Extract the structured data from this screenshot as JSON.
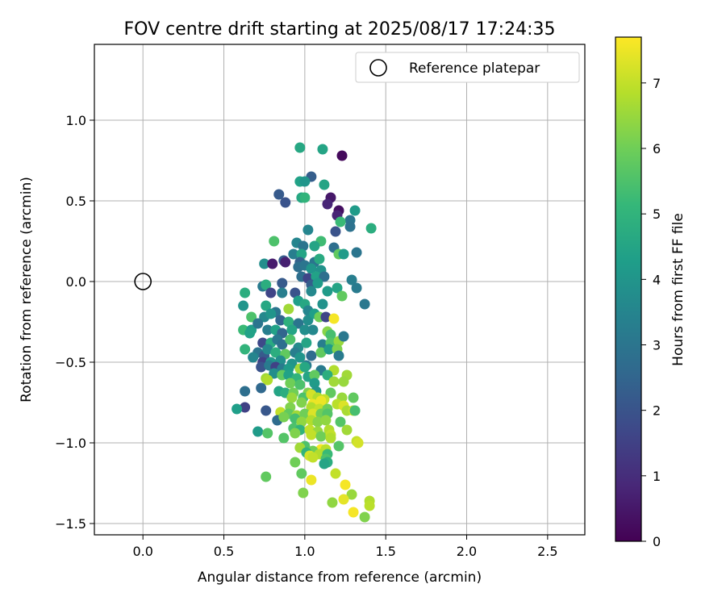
{
  "chart_data": {
    "type": "scatter",
    "title": "FOV centre drift starting at 2025/08/17 17:24:35",
    "xlabel": "Angular distance from reference (arcmin)",
    "ylabel": "Rotation from reference (arcmin)",
    "xlim": [
      -0.3,
      2.73
    ],
    "ylim": [
      -1.57,
      1.47
    ],
    "xticks": [
      "0.0",
      "0.5",
      "1.0",
      "1.5",
      "2.0",
      "2.5"
    ],
    "xtick_values": [
      0,
      0.5,
      1.0,
      1.5,
      2.0,
      2.5
    ],
    "yticks": [
      "1.0",
      "0.5",
      "0.0",
      "−0.5",
      "−1.0",
      "−1.5"
    ],
    "ytick_values": [
      1.0,
      0.5,
      0,
      -0.5,
      -1.0,
      -1.5
    ],
    "grid": true,
    "legend": {
      "placement": "upper-right",
      "label": "Reference platepar"
    },
    "reference_point": {
      "x": 0,
      "y": 0
    },
    "colorbar": {
      "label": "Hours from first FF file",
      "range": [
        0,
        7.7
      ],
      "ticks": [
        "0",
        "1",
        "2",
        "3",
        "4",
        "5",
        "6",
        "7"
      ],
      "tick_values": [
        0,
        1,
        2,
        3,
        4,
        5,
        6,
        7
      ],
      "colormap": [
        "#440154",
        "#482878",
        "#3e4989",
        "#31688e",
        "#26828e",
        "#1f9e89",
        "#35b779",
        "#6ece58",
        "#b5de2b",
        "#fde725"
      ]
    },
    "points": [
      [
        1.23,
        0.78,
        0.2
      ],
      [
        0.97,
        0.83,
        4.6
      ],
      [
        1.11,
        0.82,
        4.5
      ],
      [
        1.04,
        0.65,
        2.3
      ],
      [
        0.97,
        0.62,
        4.4
      ],
      [
        1.0,
        0.62,
        4.0
      ],
      [
        1.12,
        0.6,
        4.5
      ],
      [
        0.84,
        0.54,
        2.2
      ],
      [
        0.98,
        0.52,
        4.6
      ],
      [
        1.0,
        0.52,
        5.0
      ],
      [
        1.16,
        0.52,
        0.5
      ],
      [
        0.88,
        0.49,
        2.0
      ],
      [
        1.14,
        0.48,
        0.8
      ],
      [
        1.21,
        0.44,
        0.3
      ],
      [
        1.31,
        0.44,
        4.2
      ],
      [
        1.2,
        0.41,
        0.8
      ],
      [
        1.28,
        0.38,
        3.0
      ],
      [
        1.28,
        0.34,
        2.9
      ],
      [
        1.41,
        0.33,
        4.8
      ],
      [
        1.02,
        0.32,
        3.5
      ],
      [
        1.19,
        0.31,
        2.0
      ],
      [
        1.22,
        0.37,
        5.2
      ],
      [
        0.81,
        0.25,
        5.5
      ],
      [
        0.95,
        0.24,
        3.5
      ],
      [
        1.1,
        0.25,
        5.3
      ],
      [
        0.99,
        0.22,
        3.0
      ],
      [
        1.06,
        0.22,
        4.5
      ],
      [
        1.18,
        0.21,
        2.8
      ],
      [
        1.32,
        0.18,
        3.0
      ],
      [
        0.93,
        0.17,
        3.3
      ],
      [
        0.98,
        0.17,
        4.5
      ],
      [
        1.21,
        0.17,
        5.8
      ],
      [
        1.24,
        0.17,
        4.2
      ],
      [
        0.87,
        0.13,
        2.2
      ],
      [
        0.97,
        0.12,
        2.4
      ],
      [
        1.06,
        0.12,
        3.0
      ],
      [
        1.09,
        0.14,
        4.7
      ],
      [
        0.75,
        0.11,
        3.8
      ],
      [
        0.8,
        0.11,
        0.6
      ],
      [
        0.88,
        0.12,
        0.7
      ],
      [
        0.96,
        0.09,
        2.8
      ],
      [
        1.0,
        0.1,
        3.0
      ],
      [
        1.04,
        0.08,
        4.0
      ],
      [
        1.1,
        0.07,
        3.9
      ],
      [
        0.98,
        0.03,
        2.8
      ],
      [
        1.02,
        0.02,
        1.6
      ],
      [
        1.07,
        0.03,
        4.4
      ],
      [
        1.12,
        0.03,
        2.8
      ],
      [
        1.29,
        0.01,
        3.3
      ],
      [
        0.74,
        -0.03,
        3.2
      ],
      [
        0.76,
        -0.02,
        4.8
      ],
      [
        0.86,
        -0.01,
        2.2
      ],
      [
        1.04,
        -0.02,
        2.3
      ],
      [
        1.08,
        -0.01,
        4.2
      ],
      [
        1.2,
        -0.04,
        4.5
      ],
      [
        1.32,
        -0.04,
        3.2
      ],
      [
        0.63,
        -0.07,
        4.8
      ],
      [
        0.79,
        -0.07,
        1.6
      ],
      [
        0.86,
        -0.07,
        3.3
      ],
      [
        0.94,
        -0.07,
        2.0
      ],
      [
        1.04,
        -0.06,
        3.6
      ],
      [
        1.14,
        -0.06,
        4.2
      ],
      [
        1.23,
        -0.09,
        5.8
      ],
      [
        1.37,
        -0.14,
        3.1
      ],
      [
        0.62,
        -0.15,
        4.0
      ],
      [
        0.76,
        -0.15,
        4.6
      ],
      [
        0.82,
        -0.19,
        3.0
      ],
      [
        0.9,
        -0.17,
        6.6
      ],
      [
        0.96,
        -0.12,
        4.3
      ],
      [
        1.0,
        -0.14,
        4.6
      ],
      [
        1.02,
        -0.18,
        3.5
      ],
      [
        1.11,
        -0.14,
        3.9
      ],
      [
        0.67,
        -0.22,
        5.5
      ],
      [
        0.75,
        -0.22,
        3.6
      ],
      [
        0.79,
        -0.2,
        4.0
      ],
      [
        0.85,
        -0.24,
        2.5
      ],
      [
        0.9,
        -0.25,
        4.9
      ],
      [
        0.96,
        -0.26,
        3.0
      ],
      [
        1.02,
        -0.24,
        3.8
      ],
      [
        1.06,
        -0.2,
        4.3
      ],
      [
        1.09,
        -0.22,
        6.0
      ],
      [
        1.13,
        -0.22,
        1.6
      ],
      [
        1.18,
        -0.23,
        7.6
      ],
      [
        0.62,
        -0.3,
        5.2
      ],
      [
        0.67,
        -0.3,
        4.3
      ],
      [
        0.71,
        -0.26,
        3.0
      ],
      [
        0.77,
        -0.3,
        3.3
      ],
      [
        0.82,
        -0.3,
        4.4
      ],
      [
        0.86,
        -0.32,
        2.5
      ],
      [
        0.92,
        -0.3,
        4.5
      ],
      [
        1.0,
        -0.3,
        3.8
      ],
      [
        1.05,
        -0.3,
        3.6
      ],
      [
        1.14,
        -0.31,
        6.3
      ],
      [
        1.16,
        -0.33,
        5.4
      ],
      [
        0.66,
        -0.32,
        4.4
      ],
      [
        0.74,
        -0.38,
        1.7
      ],
      [
        0.79,
        -0.38,
        4.7
      ],
      [
        0.83,
        -0.36,
        3.1
      ],
      [
        0.86,
        -0.39,
        2.8
      ],
      [
        0.91,
        -0.36,
        5.5
      ],
      [
        0.96,
        -0.41,
        3.7
      ],
      [
        1.01,
        -0.38,
        4.5
      ],
      [
        1.11,
        -0.39,
        3.3
      ],
      [
        1.16,
        -0.38,
        5.6
      ],
      [
        1.21,
        -0.37,
        6.5
      ],
      [
        1.24,
        -0.34,
        3.1
      ],
      [
        0.63,
        -0.42,
        5.0
      ],
      [
        0.71,
        -0.44,
        3.0
      ],
      [
        0.75,
        -0.46,
        2.2
      ],
      [
        0.77,
        -0.42,
        3.6
      ],
      [
        0.82,
        -0.44,
        4.8
      ],
      [
        0.88,
        -0.45,
        5.8
      ],
      [
        0.94,
        -0.44,
        3.3
      ],
      [
        0.97,
        -0.47,
        4.0
      ],
      [
        1.04,
        -0.46,
        2.7
      ],
      [
        1.1,
        -0.44,
        5.8
      ],
      [
        1.15,
        -0.42,
        4.2
      ],
      [
        1.2,
        -0.42,
        6.2
      ],
      [
        1.21,
        -0.46,
        3.2
      ],
      [
        0.68,
        -0.47,
        3.5
      ],
      [
        0.74,
        -0.5,
        1.5
      ],
      [
        0.79,
        -0.5,
        4.0
      ],
      [
        0.85,
        -0.49,
        3.8
      ],
      [
        0.92,
        -0.51,
        4.0
      ],
      [
        1.01,
        -0.52,
        3.2
      ],
      [
        0.73,
        -0.53,
        2.0
      ],
      [
        0.78,
        -0.52,
        3.2
      ],
      [
        0.82,
        -0.53,
        1.5
      ],
      [
        0.86,
        -0.54,
        3.2
      ],
      [
        0.9,
        -0.54,
        4.2
      ],
      [
        0.97,
        -0.54,
        6.6
      ],
      [
        1.0,
        -0.53,
        4.6
      ],
      [
        1.1,
        -0.55,
        3.2
      ],
      [
        1.18,
        -0.55,
        6.8
      ],
      [
        0.76,
        -0.6,
        6.6
      ],
      [
        0.81,
        -0.57,
        3.8
      ],
      [
        0.86,
        -0.58,
        5.8
      ],
      [
        0.9,
        -0.58,
        4.4
      ],
      [
        0.95,
        -0.6,
        5.0
      ],
      [
        1.02,
        -0.59,
        4.5
      ],
      [
        1.06,
        -0.58,
        5.8
      ],
      [
        1.14,
        -0.58,
        4.8
      ],
      [
        1.26,
        -0.58,
        6.6
      ],
      [
        0.77,
        -0.61,
        6.8
      ],
      [
        0.91,
        -0.63,
        6.0
      ],
      [
        0.97,
        -0.64,
        5.5
      ],
      [
        1.06,
        -0.63,
        4.2
      ],
      [
        1.18,
        -0.62,
        6.6
      ],
      [
        1.24,
        -0.62,
        6.5
      ],
      [
        0.73,
        -0.66,
        2.6
      ],
      [
        0.84,
        -0.68,
        4.5
      ],
      [
        0.88,
        -0.69,
        4.8
      ],
      [
        0.93,
        -0.69,
        6.0
      ],
      [
        1.02,
        -0.69,
        6.2
      ],
      [
        1.07,
        -0.68,
        4.0
      ],
      [
        1.16,
        -0.69,
        5.8
      ],
      [
        0.63,
        -0.68,
        2.8
      ],
      [
        0.92,
        -0.72,
        6.5
      ],
      [
        0.99,
        -0.72,
        5.5
      ],
      [
        1.04,
        -0.7,
        7.2
      ],
      [
        1.08,
        -0.72,
        6.8
      ],
      [
        1.12,
        -0.73,
        7.0
      ],
      [
        1.23,
        -0.72,
        6.5
      ],
      [
        1.3,
        -0.72,
        5.8
      ],
      [
        0.98,
        -0.75,
        6.2
      ],
      [
        1.05,
        -0.76,
        7.5
      ],
      [
        1.1,
        -0.74,
        7.5
      ],
      [
        1.2,
        -0.76,
        6.9
      ],
      [
        1.24,
        -0.77,
        7.3
      ],
      [
        0.63,
        -0.78,
        1.5
      ],
      [
        0.58,
        -0.79,
        4.3
      ],
      [
        0.76,
        -0.8,
        2.1
      ],
      [
        0.91,
        -0.78,
        6.2
      ],
      [
        1.04,
        -0.78,
        6.8
      ],
      [
        1.09,
        -0.79,
        7.0
      ],
      [
        1.14,
        -0.79,
        6.0
      ],
      [
        1.26,
        -0.8,
        6.7
      ],
      [
        1.3,
        -0.8,
        7.0
      ],
      [
        1.31,
        -0.8,
        5.4
      ],
      [
        0.85,
        -0.81,
        7.0
      ],
      [
        0.9,
        -0.82,
        5.8
      ],
      [
        0.95,
        -0.83,
        6.6
      ],
      [
        1.0,
        -0.82,
        6.0
      ],
      [
        1.05,
        -0.82,
        7.3
      ],
      [
        1.1,
        -0.82,
        6.0
      ],
      [
        1.14,
        -0.82,
        5.6
      ],
      [
        0.83,
        -0.86,
        2.7
      ],
      [
        0.87,
        -0.84,
        6.1
      ],
      [
        0.94,
        -0.85,
        5.4
      ],
      [
        0.98,
        -0.87,
        6.4
      ],
      [
        1.04,
        -0.86,
        6.8
      ],
      [
        1.08,
        -0.87,
        6.3
      ],
      [
        1.13,
        -0.86,
        6.4
      ],
      [
        1.22,
        -0.87,
        5.6
      ],
      [
        0.93,
        -0.91,
        5.5
      ],
      [
        0.97,
        -0.92,
        5.0
      ],
      [
        1.03,
        -0.92,
        7.0
      ],
      [
        1.08,
        -0.93,
        6.5
      ],
      [
        1.15,
        -0.92,
        6.8
      ],
      [
        1.26,
        -0.92,
        6.6
      ],
      [
        0.71,
        -0.93,
        4.2
      ],
      [
        0.77,
        -0.94,
        5.6
      ],
      [
        0.94,
        -0.94,
        6.2
      ],
      [
        1.04,
        -0.95,
        7.0
      ],
      [
        1.1,
        -0.96,
        6.0
      ],
      [
        1.16,
        -0.95,
        7.0
      ],
      [
        0.87,
        -0.97,
        5.6
      ],
      [
        1.16,
        -0.97,
        6.8
      ],
      [
        1.32,
        -0.99,
        7.0
      ],
      [
        1.33,
        -1.0,
        7.2
      ],
      [
        1.0,
        -1.02,
        5.5
      ],
      [
        1.1,
        -1.04,
        7.6
      ],
      [
        1.13,
        -1.04,
        6.9
      ],
      [
        1.21,
        -1.02,
        5.6
      ],
      [
        0.97,
        -1.03,
        6.6
      ],
      [
        1.05,
        -1.05,
        6.0
      ],
      [
        1.01,
        -1.06,
        5.0
      ],
      [
        1.09,
        -1.07,
        6.8
      ],
      [
        1.14,
        -1.07,
        5.2
      ],
      [
        1.03,
        -1.08,
        7.2
      ],
      [
        1.05,
        -1.09,
        7.0
      ],
      [
        1.13,
        -1.1,
        5.5
      ],
      [
        1.14,
        -1.12,
        4.8
      ],
      [
        0.94,
        -1.12,
        6.0
      ],
      [
        1.12,
        -1.13,
        4.5
      ],
      [
        1.19,
        -1.19,
        7.0
      ],
      [
        0.76,
        -1.21,
        5.8
      ],
      [
        0.98,
        -1.19,
        5.8
      ],
      [
        1.04,
        -1.23,
        7.5
      ],
      [
        1.25,
        -1.26,
        7.6
      ],
      [
        1.29,
        -1.32,
        6.5
      ],
      [
        0.99,
        -1.31,
        6.2
      ],
      [
        1.24,
        -1.35,
        7.4
      ],
      [
        1.17,
        -1.37,
        6.4
      ],
      [
        1.4,
        -1.36,
        6.8
      ],
      [
        1.4,
        -1.39,
        6.9
      ],
      [
        1.3,
        -1.43,
        7.6
      ],
      [
        1.37,
        -1.46,
        6.2
      ]
    ]
  }
}
